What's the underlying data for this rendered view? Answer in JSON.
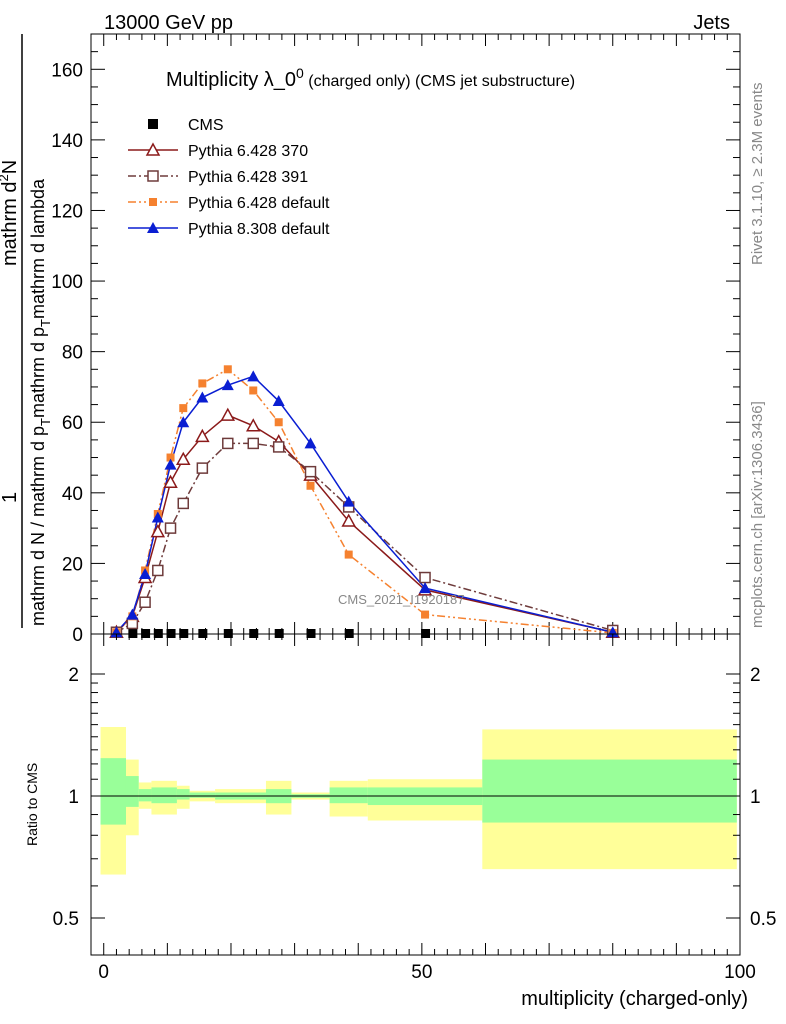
{
  "header": {
    "energy_label": "13000 GeV pp",
    "process_label": "Jets",
    "rivet_label": "Rivet 3.1.10, ≥ 2.3M events",
    "mcplots_label": "mcplots.cern.ch [arXiv:1306.3436]",
    "watermark": "CMS_2021_I1920187"
  },
  "chart_data": [
    {
      "type": "line",
      "title_main": "Multiplicity λ_0",
      "title_sup": "0",
      "title_suffix": "(charged only) (CMS jet substructure)",
      "ylabel_num_1": "1",
      "ylabel_num_2": "mathrm d",
      "ylabel_num_sup": "2",
      "ylabel_num_3": "N",
      "ylabel_den_1": "mathrm d N / mathrm d p",
      "ylabel_den_sub": "T",
      "ylabel_den_2": "mathrm d p",
      "ylabel_den_sub2": "T",
      "ylabel_den_3": "mathrm d lambda",
      "xlim": [
        -2,
        100
      ],
      "ylim": [
        0,
        170
      ],
      "yticks": [
        0,
        20,
        40,
        60,
        80,
        100,
        120,
        140,
        160
      ],
      "series": [
        {
          "name": "CMS",
          "color": "#000000",
          "marker": "filled-square",
          "x": [
            2,
            4.5,
            6.5,
            8.5,
            10.5,
            12.5,
            15.5,
            19.5,
            23.5,
            27.5,
            32.5,
            38.5,
            50.5,
            80
          ],
          "y": [
            0,
            0,
            0,
            0,
            0,
            0,
            0,
            0,
            0,
            0,
            0,
            0,
            0,
            0
          ]
        },
        {
          "name": "Pythia 6.428 370",
          "color": "#8b1a1a",
          "marker": "open-triangle",
          "dash": "solid",
          "x": [
            2,
            4.5,
            6.5,
            8.5,
            10.5,
            12.5,
            15.5,
            19.5,
            23.5,
            27.5,
            32.5,
            38.5,
            50.5,
            80
          ],
          "y": [
            0.5,
            5,
            16,
            29,
            43,
            49.5,
            56,
            62,
            59,
            54.5,
            45,
            32,
            12.5,
            0.5
          ]
        },
        {
          "name": "Pythia 6.428 391",
          "color": "#6e3b3b",
          "marker": "open-square",
          "dash": "dashdot",
          "x": [
            2,
            4.5,
            6.5,
            8.5,
            10.5,
            12.5,
            15.5,
            19.5,
            23.5,
            27.5,
            32.5,
            38.5,
            50.5,
            80
          ],
          "y": [
            0.5,
            3,
            9,
            18,
            30,
            37,
            47,
            54,
            54,
            53,
            46,
            36,
            16,
            1
          ]
        },
        {
          "name": "Pythia 6.428 default",
          "color": "#f5812f",
          "marker": "small-filled-square",
          "dash": "dashdotdot",
          "x": [
            2,
            4.5,
            6.5,
            8.5,
            10.5,
            12.5,
            15.5,
            19.5,
            23.5,
            27.5,
            32.5,
            38.5,
            50.5,
            80
          ],
          "y": [
            0.5,
            5,
            18,
            34,
            50,
            64,
            71,
            75,
            69,
            60,
            42,
            22.5,
            5.5,
            0.3
          ]
        },
        {
          "name": "Pythia 8.308 default",
          "color": "#0a1ed2",
          "marker": "filled-triangle",
          "dash": "solid",
          "x": [
            2,
            4.5,
            6.5,
            8.5,
            10.5,
            12.5,
            15.5,
            19.5,
            23.5,
            27.5,
            32.5,
            38.5,
            50.5,
            80
          ],
          "y": [
            0.5,
            5.5,
            17,
            33,
            48,
            60,
            67,
            70.5,
            73,
            66,
            54,
            37.5,
            13,
            0.5
          ]
        }
      ]
    },
    {
      "type": "area",
      "ylabel": "Ratio to CMS",
      "xlabel": "multiplicity (charged-only)",
      "xlim": [
        -2,
        100
      ],
      "ylim": [
        0.4,
        2.3
      ],
      "ytick_labels": [
        "0.5",
        "1",
        "2"
      ],
      "yticks": [
        0.5,
        1,
        2
      ],
      "xticks": [
        0,
        50,
        100
      ],
      "xtick_labels": [
        "0",
        "50",
        "100"
      ],
      "inner_band_color": "#99ff99",
      "outer_band_color": "#ffff99",
      "bins": [
        {
          "x0": -0.5,
          "x1": 3.5,
          "inner_lo": 0.85,
          "inner_hi": 1.24,
          "outer_lo": 0.64,
          "outer_hi": 1.48
        },
        {
          "x0": 3.5,
          "x1": 5.5,
          "inner_lo": 0.94,
          "inner_hi": 1.12,
          "outer_lo": 0.8,
          "outer_hi": 1.23
        },
        {
          "x0": 5.5,
          "x1": 7.5,
          "inner_lo": 0.97,
          "inner_hi": 1.04,
          "outer_lo": 0.93,
          "outer_hi": 1.08
        },
        {
          "x0": 7.5,
          "x1": 11.5,
          "inner_lo": 0.96,
          "inner_hi": 1.05,
          "outer_lo": 0.9,
          "outer_hi": 1.09
        },
        {
          "x0": 11.5,
          "x1": 13.5,
          "inner_lo": 0.98,
          "inner_hi": 1.04,
          "outer_lo": 0.93,
          "outer_hi": 1.06
        },
        {
          "x0": 13.5,
          "x1": 17.5,
          "inner_lo": 0.99,
          "inner_hi": 1.02,
          "outer_lo": 0.97,
          "outer_hi": 1.03
        },
        {
          "x0": 17.5,
          "x1": 25.5,
          "inner_lo": 0.98,
          "inner_hi": 1.02,
          "outer_lo": 0.96,
          "outer_hi": 1.04
        },
        {
          "x0": 25.5,
          "x1": 29.5,
          "inner_lo": 0.96,
          "inner_hi": 1.04,
          "outer_lo": 0.9,
          "outer_hi": 1.09
        },
        {
          "x0": 29.5,
          "x1": 35.5,
          "inner_lo": 0.99,
          "inner_hi": 1.01,
          "outer_lo": 0.98,
          "outer_hi": 1.02
        },
        {
          "x0": 35.5,
          "x1": 41.5,
          "inner_lo": 0.96,
          "inner_hi": 1.05,
          "outer_lo": 0.89,
          "outer_hi": 1.09
        },
        {
          "x0": 41.5,
          "x1": 59.5,
          "inner_lo": 0.95,
          "inner_hi": 1.05,
          "outer_lo": 0.87,
          "outer_hi": 1.1
        },
        {
          "x0": 59.5,
          "x1": 99.5,
          "inner_lo": 0.86,
          "inner_hi": 1.23,
          "outer_lo": 0.66,
          "outer_hi": 1.46
        }
      ]
    }
  ]
}
